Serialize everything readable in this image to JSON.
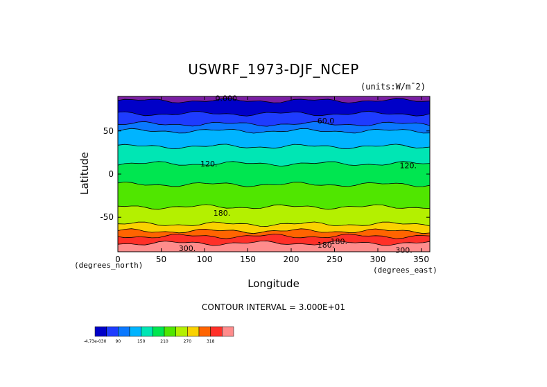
{
  "chart_data": {
    "type": "heatmap",
    "title": "USWRF_1973-DJF_NCEP",
    "units": "(units:W/m^2)",
    "units_display": "(units:W/m¯2)",
    "xlabel": "Longitude",
    "ylabel": "Latitude",
    "x_units": "(degrees_east)",
    "y_units": "(degrees_north)",
    "xlim": [
      0,
      360
    ],
    "ylim": [
      -90,
      90
    ],
    "x_ticks": [
      0,
      50,
      100,
      150,
      200,
      250,
      300,
      350
    ],
    "y_ticks": [
      50,
      0,
      -50
    ],
    "contour_interval_text": "CONTOUR INTERVAL = 3.000E+01",
    "contour_labels": [
      "0.000",
      "60.0",
      "120.",
      "120.",
      "180.",
      "180.",
      "180.",
      "300.",
      "300."
    ],
    "bands": [
      {
        "lat_top": 90,
        "lat_bottom": 85,
        "level": 0,
        "color": "#7a1fa2"
      },
      {
        "lat_top": 85,
        "lat_bottom": 70,
        "level": 15,
        "color": "#0000c8"
      },
      {
        "lat_top": 70,
        "lat_bottom": 58,
        "level": 45,
        "color": "#1e3cff"
      },
      {
        "lat_top": 58,
        "lat_bottom": 50,
        "level": 75,
        "color": "#0a78ff"
      },
      {
        "lat_top": 50,
        "lat_bottom": 32,
        "level": 95,
        "color": "#00b4ff"
      },
      {
        "lat_top": 32,
        "lat_bottom": 12,
        "level": 125,
        "color": "#00e6b4"
      },
      {
        "lat_top": 12,
        "lat_bottom": -12,
        "level": 150,
        "color": "#00e650"
      },
      {
        "lat_top": -12,
        "lat_bottom": -38,
        "level": 175,
        "color": "#50e600"
      },
      {
        "lat_top": -38,
        "lat_bottom": -58,
        "level": 200,
        "color": "#b4f000"
      },
      {
        "lat_top": -58,
        "lat_bottom": -66,
        "level": 225,
        "color": "#fad200"
      },
      {
        "lat_top": -66,
        "lat_bottom": -72,
        "level": 255,
        "color": "#ff6400"
      },
      {
        "lat_top": -72,
        "lat_bottom": -80,
        "level": 285,
        "color": "#ff3028"
      },
      {
        "lat_top": -80,
        "lat_bottom": -90,
        "level": 310,
        "color": "#ff8c8c"
      }
    ],
    "colorbar": {
      "colors": [
        "#0000c8",
        "#1e3cff",
        "#0a78ff",
        "#00b4ff",
        "#00e6b4",
        "#00e650",
        "#50e600",
        "#b4f000",
        "#fad200",
        "#ff6400",
        "#ff3028",
        "#ff8c8c"
      ],
      "labels": [
        "-4.73e-030",
        "90",
        "150",
        "210",
        "270",
        "318"
      ]
    }
  }
}
